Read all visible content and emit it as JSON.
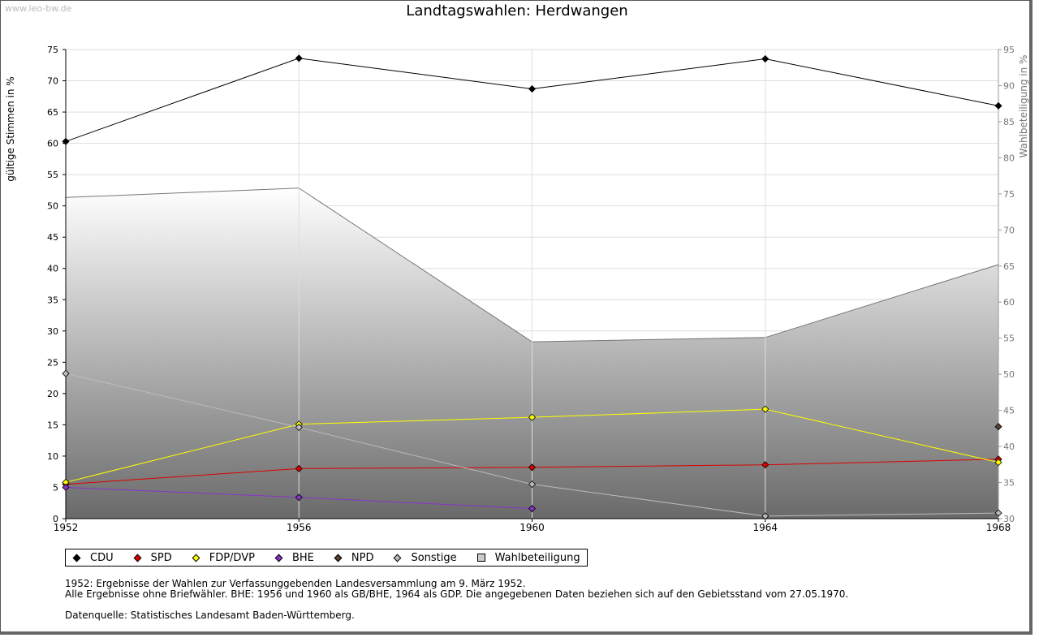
{
  "watermark": "www.leo-bw.de",
  "chart_data": {
    "type": "line",
    "title": "Landtagswahlen: Herdwangen",
    "ylabel": "gültige Stimmen in %",
    "y2label": "Wahlbeteiligung in %",
    "x": [
      1952,
      1956,
      1960,
      1964,
      1968
    ],
    "ylim": [
      0,
      75
    ],
    "y2lim": [
      30,
      95
    ],
    "yticks": [
      0,
      5,
      10,
      15,
      20,
      25,
      30,
      35,
      40,
      45,
      50,
      55,
      60,
      65,
      70,
      75
    ],
    "y2ticks": [
      30,
      35,
      40,
      45,
      50,
      55,
      60,
      65,
      70,
      75,
      80,
      85,
      90,
      95
    ],
    "grid": true,
    "legend_position": "bottom",
    "series": [
      {
        "name": "CDU",
        "color": "#000000",
        "values": [
          60.3,
          73.6,
          68.7,
          73.5,
          66.0
        ]
      },
      {
        "name": "SPD",
        "color": "#dd0000",
        "values": [
          5.5,
          8.0,
          8.2,
          8.6,
          9.5
        ]
      },
      {
        "name": "FDP/DVP",
        "color": "#ffff00",
        "values": [
          5.8,
          15.1,
          16.2,
          17.5,
          9.0
        ]
      },
      {
        "name": "BHE",
        "color": "#8833cc",
        "values": [
          5.0,
          3.4,
          1.6,
          null,
          null
        ]
      },
      {
        "name": "NPD",
        "color": "#5a4030",
        "values": [
          null,
          null,
          null,
          null,
          14.7
        ]
      },
      {
        "name": "Sonstige",
        "color": "#bbbbbb",
        "values": [
          23.2,
          14.6,
          5.5,
          0.4,
          0.9
        ]
      }
    ],
    "area": {
      "name": "Wahlbeteiligung",
      "color": "#cccccc",
      "axis": "right",
      "values": [
        74.5,
        75.8,
        54.5,
        55.1,
        65.2
      ]
    }
  },
  "notes": {
    "line1": "1952: Ergebnisse der Wahlen zur Verfassunggebenden Landesversammlung am 9. März 1952.",
    "line2": "Alle Ergebnisse ohne Briefwähler. BHE: 1956 und 1960 als GB/BHE, 1964 als GDP. Die angegebenen Daten beziehen sich auf den Gebietsstand vom 27.05.1970.",
    "source": "Datenquelle: Statistisches Landesamt Baden-Württemberg."
  }
}
